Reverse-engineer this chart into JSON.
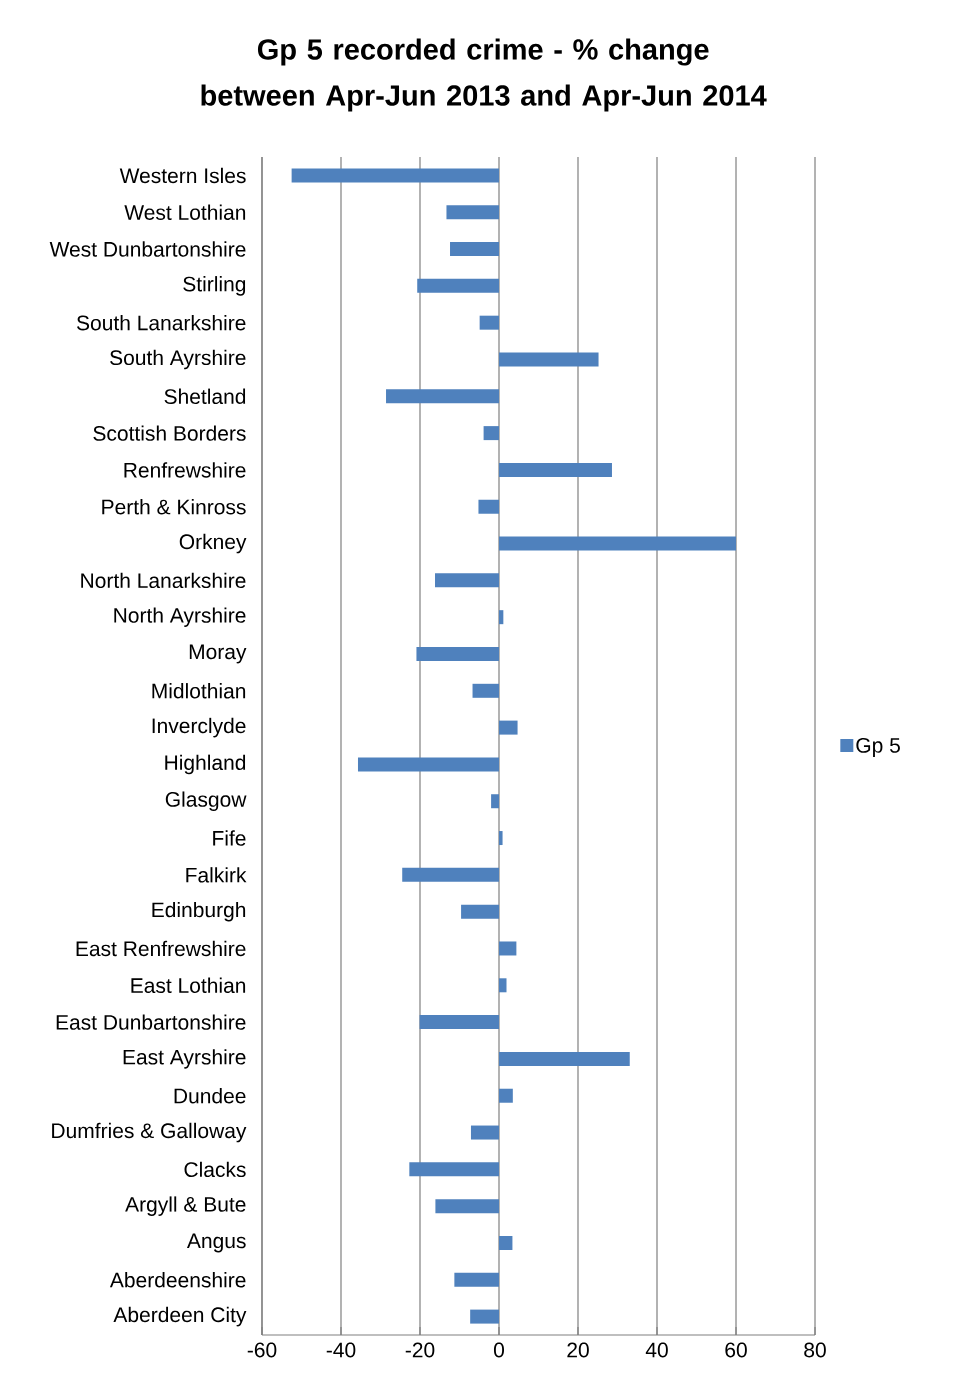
{
  "chart_data": {
    "type": "bar",
    "orientation": "horizontal",
    "title": "Gp 5 recorded crime - % change between Apr-Jun 2013 and Apr-Jun 2014",
    "categories": [
      "Western Isles",
      "West Lothian",
      "West Dunbartonshire",
      "Stirling",
      "South Lanarkshire",
      "South Ayrshire",
      "Shetland",
      "Scottish Borders",
      "Renfrewshire",
      "Perth & Kinross",
      "Orkney",
      "North Lanarkshire",
      "North Ayrshire",
      "Moray",
      "Midlothian",
      "Inverclyde",
      "Highland",
      "Glasgow",
      "Fife",
      "Falkirk",
      "Edinburgh",
      "East Renfrewshire",
      "East Lothian",
      "East Dunbartonshire",
      "East Ayrshire",
      "Dundee",
      "Dumfries & Galloway",
      "Clacks",
      "Argyll & Bute",
      "Angus",
      "Aberdeenshire",
      "Aberdeen City"
    ],
    "series": [
      {
        "name": "Gp 5",
        "color": "#4f81bd",
        "values": [
          -52.5,
          -13.3,
          -12.4,
          -20.7,
          -4.9,
          25.2,
          -28.6,
          -3.9,
          28.6,
          -5.2,
          60,
          -16.2,
          1.1,
          -20.9,
          -6.7,
          4.7,
          -35.7,
          -2.0,
          0.9,
          -24.5,
          -9.6,
          4.4,
          1.9,
          -20.1,
          33.1,
          3.5,
          -7.1,
          -22.7,
          -16.1,
          3.4,
          -11.3,
          -7.3
        ]
      }
    ],
    "xlim": [
      -60,
      80
    ],
    "xticks": [
      -60,
      -40,
      -20,
      0,
      20,
      40,
      60,
      80
    ],
    "grid": "x",
    "legend": "right"
  }
}
